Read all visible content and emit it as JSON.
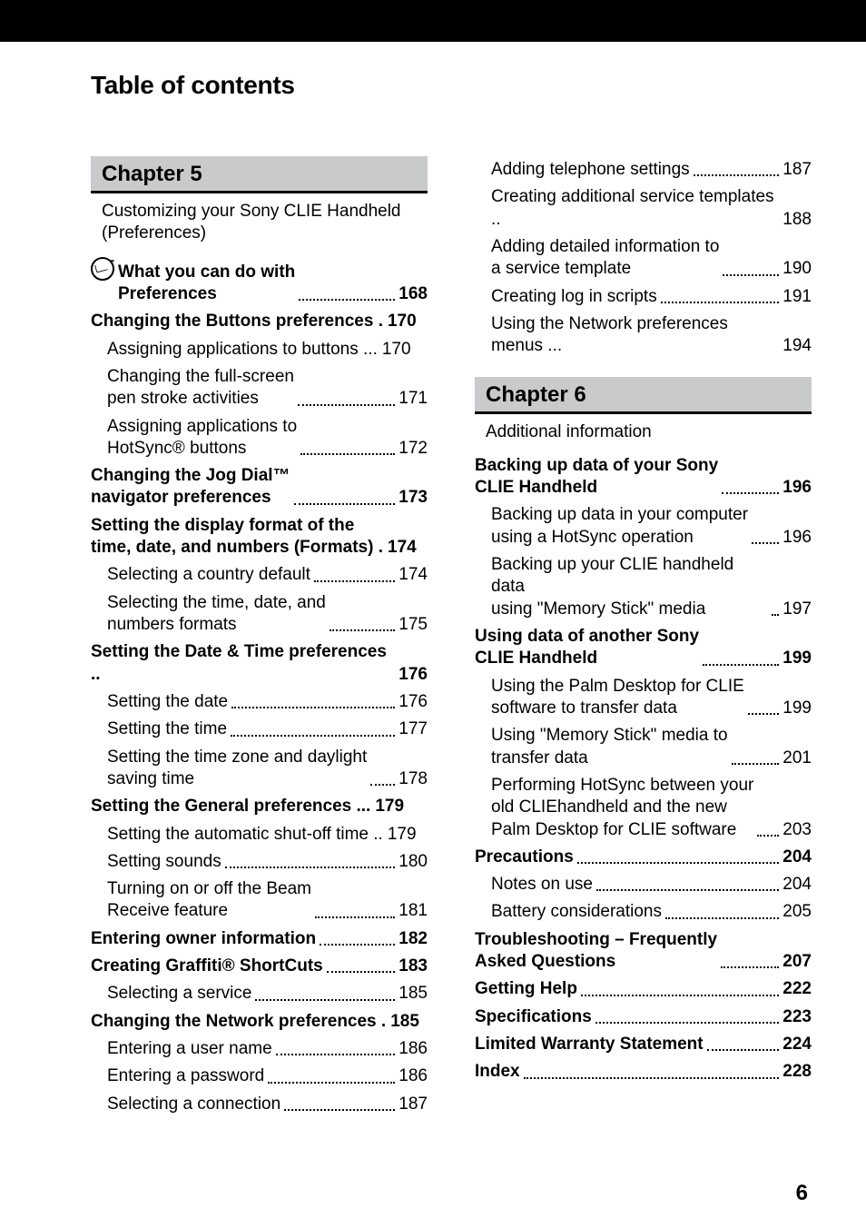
{
  "page_title": "Table of contents",
  "footer_page": "6",
  "colors": {
    "top_bar": "#000000",
    "chapter_bg": "#c9cacb",
    "chapter_border": "#000000",
    "text": "#000000",
    "background": "#ffffff"
  },
  "typography": {
    "title_size": 28,
    "entry_size": 19,
    "chapter_size": 24,
    "footer_size": 24,
    "font_family": "Helvetica Neue, Helvetica, Arial, sans-serif"
  },
  "left_column": {
    "chapter": {
      "label": "Chapter 5",
      "subtitle": "Customizing your Sony CLIE Handheld (Preferences)"
    },
    "entries": [
      {
        "type": "bold",
        "icon": true,
        "lines": [
          "What you can do with",
          "Preferences"
        ],
        "page": "168",
        "indent_second": true
      },
      {
        "type": "bold",
        "lines": [
          "Changing the Buttons preferences ."
        ],
        "page": "170",
        "tight": true
      },
      {
        "type": "sub",
        "lines": [
          "Assigning applications to buttons ..."
        ],
        "page": "170",
        "tight": true
      },
      {
        "type": "sub",
        "lines": [
          "Changing the full-screen",
          "pen stroke activities"
        ],
        "page": "171"
      },
      {
        "type": "sub",
        "lines": [
          "Assigning applications to",
          "HotSync® buttons"
        ],
        "page": "172"
      },
      {
        "type": "bold",
        "lines": [
          "Changing the Jog Dial™",
          "navigator preferences"
        ],
        "page": "173"
      },
      {
        "type": "bold",
        "lines": [
          "Setting the display format of the",
          "time, date, and numbers (Formats) ."
        ],
        "page": "174",
        "tight": true
      },
      {
        "type": "sub",
        "lines": [
          "Selecting a country default"
        ],
        "page": "174"
      },
      {
        "type": "sub",
        "lines": [
          "Selecting the time, date, and",
          "numbers formats"
        ],
        "page": "175"
      },
      {
        "type": "bold",
        "lines": [
          "Setting the Date & Time preferences .."
        ],
        "page": "176",
        "tight": true
      },
      {
        "type": "sub",
        "lines": [
          "Setting the date"
        ],
        "page": "176"
      },
      {
        "type": "sub",
        "lines": [
          "Setting the time"
        ],
        "page": "177"
      },
      {
        "type": "sub",
        "lines": [
          "Setting the time zone and daylight",
          "saving time"
        ],
        "page": "178"
      },
      {
        "type": "bold",
        "lines": [
          "Setting the General preferences ..."
        ],
        "page": "179",
        "tight": true
      },
      {
        "type": "sub",
        "lines": [
          "Setting the automatic shut-off time .."
        ],
        "page": "179",
        "tight": true
      },
      {
        "type": "sub",
        "lines": [
          "Setting sounds"
        ],
        "page": "180"
      },
      {
        "type": "sub",
        "lines": [
          "Turning on or off the Beam",
          "Receive feature"
        ],
        "page": "181"
      },
      {
        "type": "bold",
        "lines": [
          "Entering owner information"
        ],
        "page": "182"
      },
      {
        "type": "bold",
        "lines": [
          "Creating Graffiti® ShortCuts"
        ],
        "page": "183"
      },
      {
        "type": "sub",
        "lines": [
          "Selecting a service"
        ],
        "page": "185"
      },
      {
        "type": "bold",
        "lines": [
          "Changing the Network preferences ."
        ],
        "page": "185",
        "tight": true
      },
      {
        "type": "sub",
        "lines": [
          "Entering a user name"
        ],
        "page": "186"
      },
      {
        "type": "sub",
        "lines": [
          "Entering a password"
        ],
        "page": "186"
      },
      {
        "type": "sub",
        "lines": [
          "Selecting a connection"
        ],
        "page": "187"
      }
    ]
  },
  "right_column": {
    "top_entries": [
      {
        "type": "sub",
        "lines": [
          "Adding telephone settings"
        ],
        "page": "187"
      },
      {
        "type": "sub",
        "lines": [
          "Creating additional service templates .."
        ],
        "page": "188",
        "tight": true
      },
      {
        "type": "sub",
        "lines": [
          "Adding detailed information to",
          "a service template"
        ],
        "page": "190"
      },
      {
        "type": "sub",
        "lines": [
          "Creating log in scripts"
        ],
        "page": "191"
      },
      {
        "type": "sub",
        "lines": [
          "Using the Network preferences menus ..."
        ],
        "page": "194",
        "tight": true
      }
    ],
    "chapter": {
      "label": "Chapter 6",
      "subtitle": "Additional information"
    },
    "entries": [
      {
        "type": "bold",
        "lines": [
          "Backing up data of your Sony",
          "CLIE Handheld"
        ],
        "page": "196"
      },
      {
        "type": "sub",
        "lines": [
          "Backing up data in your computer",
          "using a HotSync operation"
        ],
        "page": "196"
      },
      {
        "type": "sub",
        "lines": [
          "Backing up your CLIE handheld data",
          "using \"Memory Stick\" media"
        ],
        "page": "197"
      },
      {
        "type": "bold",
        "lines": [
          "Using data of another Sony",
          "CLIE Handheld"
        ],
        "page": "199"
      },
      {
        "type": "sub",
        "lines": [
          "Using the Palm Desktop for CLIE",
          "software to transfer data"
        ],
        "page": "199"
      },
      {
        "type": "sub",
        "lines": [
          "Using \"Memory Stick\" media to",
          "transfer data"
        ],
        "page": "201"
      },
      {
        "type": "sub",
        "lines": [
          "Performing HotSync between your",
          "old  CLIEhandheld and the new",
          "Palm Desktop for CLIE software"
        ],
        "page": "203"
      },
      {
        "type": "bold",
        "lines": [
          "Precautions"
        ],
        "page": "204"
      },
      {
        "type": "sub",
        "lines": [
          "Notes on use"
        ],
        "page": "204"
      },
      {
        "type": "sub",
        "lines": [
          "Battery considerations"
        ],
        "page": "205"
      },
      {
        "type": "bold",
        "lines": [
          "Troubleshooting – Frequently",
          "Asked Questions"
        ],
        "page": "207"
      },
      {
        "type": "bold",
        "lines": [
          "Getting Help"
        ],
        "page": "222"
      },
      {
        "type": "bold",
        "lines": [
          "Specifications"
        ],
        "page": "223"
      },
      {
        "type": "bold",
        "lines": [
          "Limited Warranty Statement"
        ],
        "page": "224"
      },
      {
        "type": "bold",
        "lines": [
          "Index"
        ],
        "page": "228"
      }
    ]
  }
}
